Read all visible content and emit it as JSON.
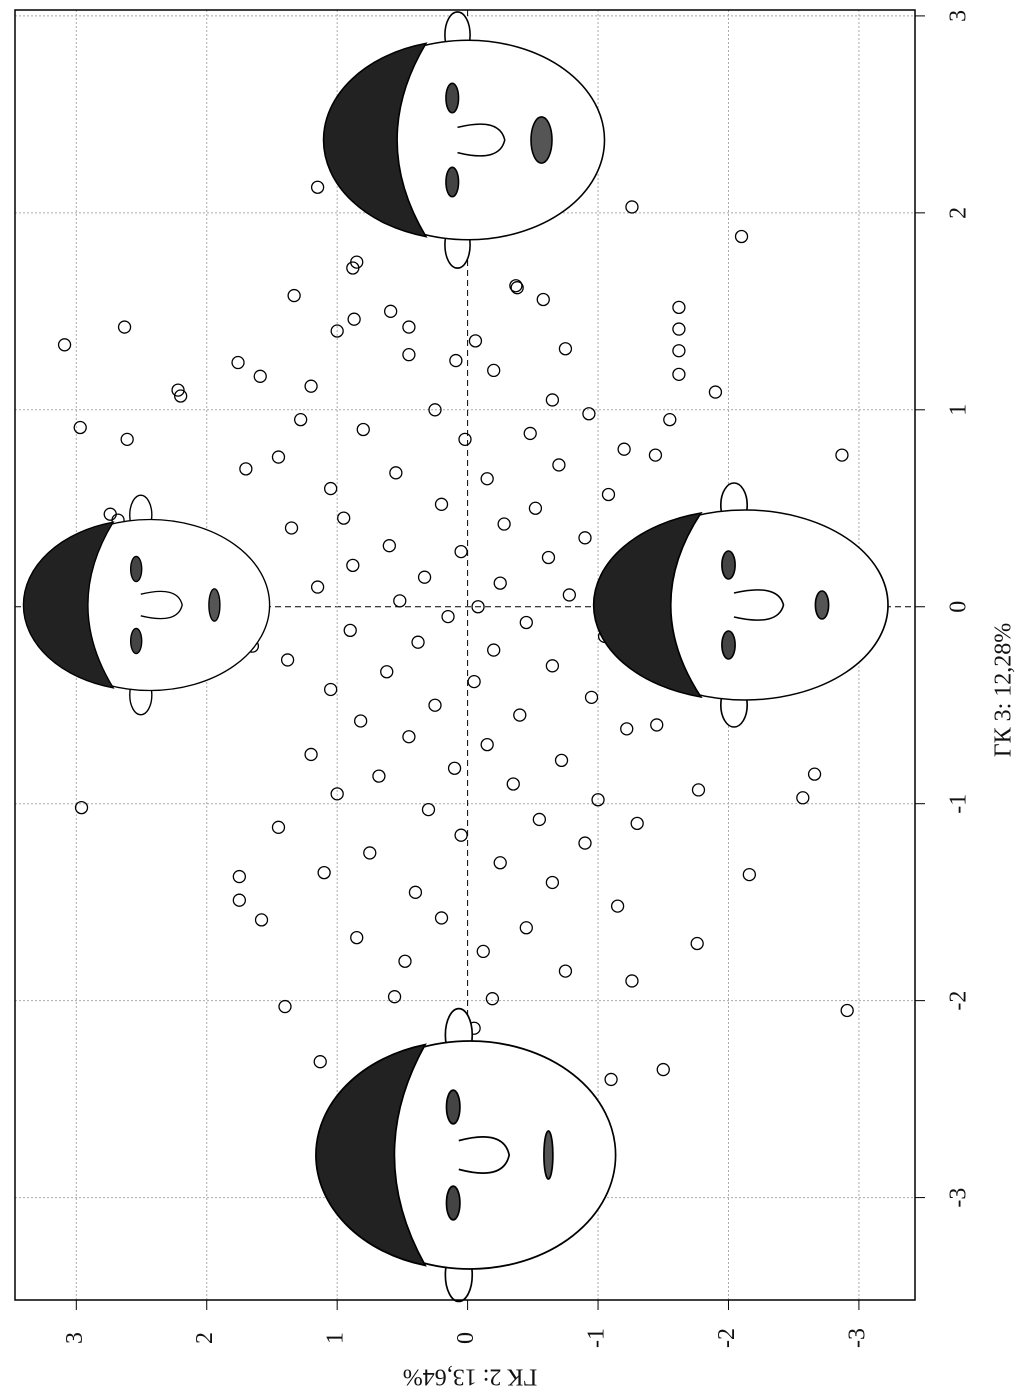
{
  "chart_data": {
    "type": "scatter",
    "xlabel": "ГК 3: 12,28%",
    "ylabel": "ГК 2: 13,64%",
    "xlim": [
      -3.52,
      3.03
    ],
    "ylim": [
      -3.43,
      3.47
    ],
    "xticks": [
      -3,
      -2,
      -1,
      0,
      1,
      2,
      3
    ],
    "yticks": [
      -3,
      -2,
      -1,
      0,
      1,
      2,
      3
    ],
    "grid": true,
    "color": "#000000",
    "x": [
      1.33,
      1.42,
      0.91,
      0.85,
      1.1,
      1.07,
      -1.02,
      0.47,
      0.44,
      2.13,
      2.03,
      1.88,
      1.09,
      0.77,
      -0.85,
      -0.97,
      -1.36,
      -2.05,
      -2.35,
      -2.4,
      -2.31,
      -2.03,
      -1.9,
      -1.71,
      -2.14,
      -1.99,
      -1.98,
      -1.59,
      -1.37,
      -1.49,
      1.58,
      1.24,
      1.52,
      1.41,
      1.3,
      1.18,
      0.77,
      -0.93,
      1.75,
      1.72,
      1.63,
      1.62,
      1.56,
      1.5,
      1.46,
      1.42,
      1.35,
      1.31,
      1.28,
      1.25,
      1.2,
      1.17,
      1.12,
      1.05,
      1.0,
      0.98,
      0.95,
      0.9,
      0.88,
      0.85,
      0.8,
      0.76,
      0.72,
      0.68,
      0.65,
      0.6,
      0.57,
      0.52,
      0.5,
      0.45,
      0.42,
      0.4,
      0.35,
      0.31,
      0.28,
      0.25,
      0.21,
      0.18,
      0.15,
      0.12,
      0.1,
      0.06,
      0.03,
      0.0,
      -0.05,
      -0.08,
      -0.12,
      -0.15,
      -0.18,
      -0.22,
      -0.27,
      -0.3,
      -0.33,
      -0.38,
      -0.42,
      -0.46,
      -0.5,
      -0.55,
      -0.58,
      -0.62,
      -0.66,
      -0.7,
      -0.75,
      -0.78,
      -0.82,
      -0.86,
      -0.9,
      -0.95,
      -0.98,
      -1.03,
      -1.08,
      -1.12,
      -1.16,
      -1.2,
      -1.25,
      -1.3,
      -1.35,
      -1.4,
      -1.45,
      -1.52,
      -1.58,
      -1.63,
      -1.68,
      -1.75,
      -1.8,
      -1.85,
      0.33,
      -0.6,
      0.95,
      -1.1,
      1.4,
      -0.2,
      0.7
    ],
    "y": [
      3.09,
      2.63,
      2.97,
      2.61,
      2.22,
      2.2,
      2.96,
      2.74,
      2.68,
      1.15,
      -1.26,
      -2.1,
      -1.9,
      -2.87,
      -2.66,
      -2.57,
      -2.16,
      -2.91,
      -1.5,
      -1.1,
      1.13,
      1.4,
      -1.26,
      -1.76,
      -0.05,
      -0.19,
      0.56,
      1.58,
      1.75,
      1.75,
      1.33,
      1.76,
      -1.62,
      -1.62,
      -1.62,
      -1.62,
      -1.44,
      -1.77,
      0.85,
      0.88,
      -0.37,
      -0.38,
      -0.58,
      0.59,
      0.87,
      0.45,
      -0.06,
      -0.75,
      0.45,
      0.09,
      -0.2,
      1.59,
      1.2,
      -0.65,
      0.25,
      -0.93,
      1.28,
      0.8,
      -0.48,
      0.02,
      -1.2,
      1.45,
      -0.7,
      0.55,
      -0.15,
      1.05,
      -1.08,
      0.2,
      -0.52,
      0.95,
      -0.28,
      1.35,
      -0.9,
      0.6,
      0.05,
      -0.62,
      0.88,
      -1.18,
      0.33,
      -0.25,
      1.15,
      -0.78,
      0.52,
      -0.08,
      0.15,
      -0.45,
      0.9,
      -1.05,
      0.38,
      -0.2,
      1.38,
      -0.65,
      0.62,
      -0.05,
      1.05,
      -0.95,
      0.25,
      -0.4,
      0.82,
      -1.22,
      0.45,
      -0.15,
      1.2,
      -0.72,
      0.1,
      0.68,
      -0.35,
      1.0,
      -1.0,
      0.3,
      -0.55,
      1.45,
      0.05,
      -0.9,
      0.75,
      -0.25,
      1.1,
      -0.65,
      0.4,
      -1.15,
      0.2,
      -0.45,
      0.85,
      -0.12,
      0.48,
      -0.75,
      -1.5,
      -1.45,
      -1.55,
      -1.3,
      1.0,
      1.65,
      1.7
    ]
  }
}
